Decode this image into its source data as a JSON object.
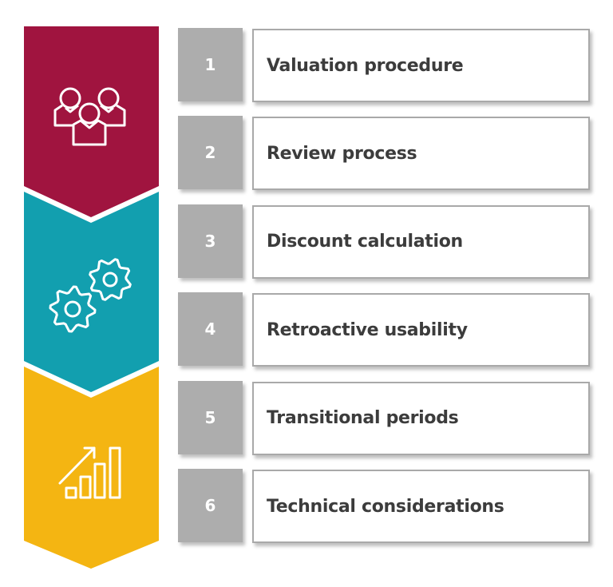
{
  "colors": {
    "stage1": "#A0143F",
    "stage2": "#129FAF",
    "stage3": "#F4B512",
    "number_box": "#ADADAD",
    "text": "#3C3C3C"
  },
  "stages": [
    {
      "icon": "people-group-icon"
    },
    {
      "icon": "gears-icon"
    },
    {
      "icon": "growth-chart-icon"
    }
  ],
  "steps": [
    {
      "number": "1",
      "label": "Valuation procedure"
    },
    {
      "number": "2",
      "label": "Review process"
    },
    {
      "number": "3",
      "label": "Discount calculation"
    },
    {
      "number": "4",
      "label": "Retroactive usability"
    },
    {
      "number": "5",
      "label": "Transitional periods"
    },
    {
      "number": "6",
      "label": "Technical considerations"
    }
  ]
}
